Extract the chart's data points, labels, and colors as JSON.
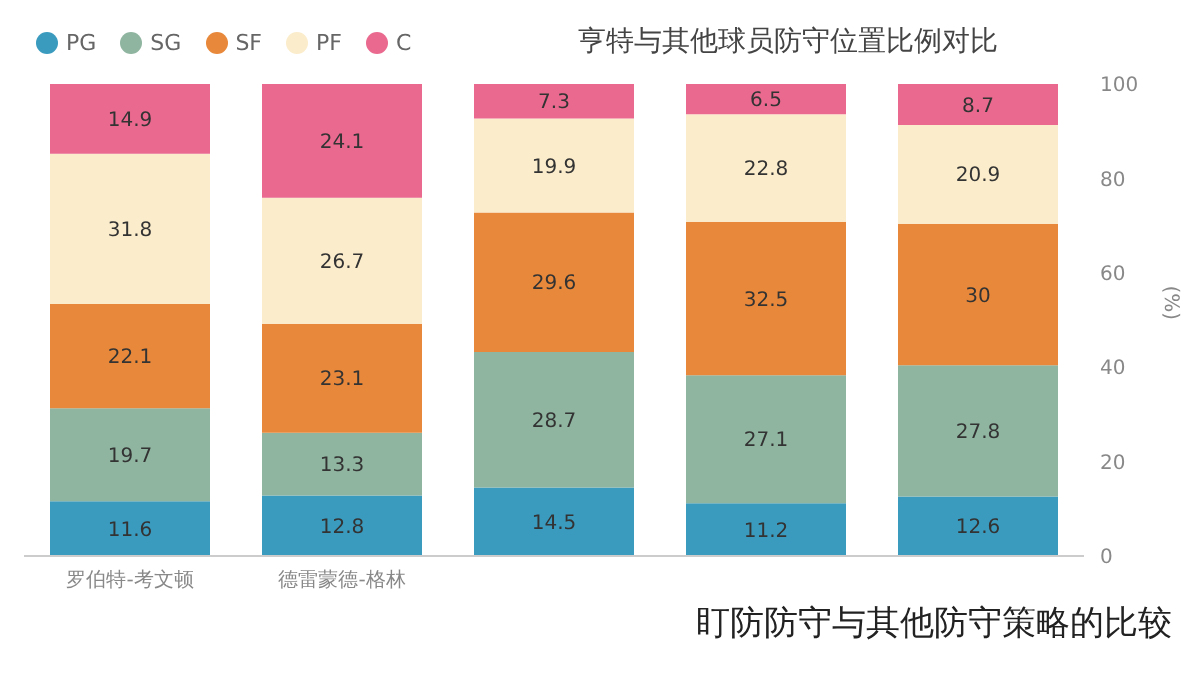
{
  "chart_data": {
    "type": "bar",
    "stacked": true,
    "title": "亨特与其他球员防守位置比例对比",
    "ylabel": "(%)",
    "categories": [
      "罗伯特-考文顿",
      "德雷蒙德-格林",
      null,
      null,
      null
    ],
    "series": [
      {
        "name": "PG",
        "color": "#3a9bbf",
        "values": [
          11.6,
          12.8,
          14.5,
          11.2,
          12.6
        ]
      },
      {
        "name": "SG",
        "color": "#8fb5a0",
        "values": [
          19.7,
          13.3,
          28.7,
          27.1,
          27.8
        ]
      },
      {
        "name": "SF",
        "color": "#e8883a",
        "values": [
          22.1,
          23.1,
          29.6,
          32.5,
          30
        ]
      },
      {
        "name": "PF",
        "color": "#fbeccb",
        "values": [
          31.8,
          26.7,
          19.9,
          22.8,
          20.9
        ]
      },
      {
        "name": "C",
        "color": "#e9698f",
        "values": [
          14.9,
          24.1,
          7.3,
          6.5,
          8.7
        ]
      }
    ],
    "ylim": [
      0,
      100
    ],
    "yticks": [
      0,
      20,
      40,
      60,
      80,
      100
    ],
    "data_labels": true,
    "legend": "top left",
    "annotations": [
      "盯防防守与其他防守策略的比较"
    ]
  }
}
